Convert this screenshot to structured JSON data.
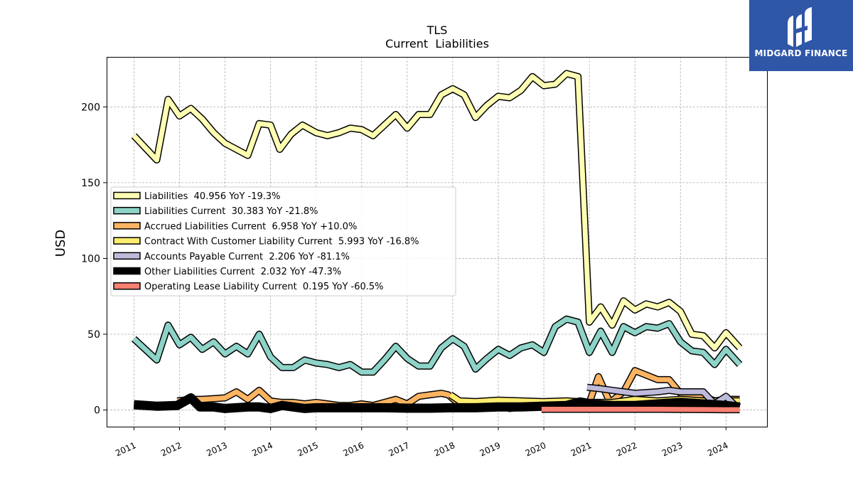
{
  "chart_data": {
    "type": "line",
    "title": "TLS",
    "subtitle": "Current  Liabilities",
    "ylabel": "USD",
    "xlabel": "",
    "xlim": [
      2010.4,
      2024.9
    ],
    "ylim": [
      -11,
      233
    ],
    "xticks": [
      2011,
      2012,
      2013,
      2014,
      2015,
      2016,
      2017,
      2018,
      2019,
      2020,
      2021,
      2022,
      2023,
      2024
    ],
    "xtick_labels": [
      "2011",
      "2012",
      "2013",
      "2014",
      "2015",
      "2016",
      "2017",
      "2018",
      "2019",
      "2020",
      "2021",
      "2022",
      "2023",
      "2024"
    ],
    "yticks": [
      0,
      50,
      100,
      150,
      200
    ],
    "ytick_labels": [
      "0",
      "50",
      "100",
      "150",
      "200"
    ],
    "grid": true,
    "legend_position": "center-left",
    "series": [
      {
        "name": "Liabilities",
        "legend_label": "Liabilities  40.956 YoY -19.3%",
        "color": "#ffffb3",
        "width": 7,
        "points": [
          [
            2011.0,
            181
          ],
          [
            2011.25,
            173
          ],
          [
            2011.5,
            165
          ],
          [
            2011.75,
            205
          ],
          [
            2012.0,
            194
          ],
          [
            2012.25,
            199
          ],
          [
            2012.5,
            192
          ],
          [
            2012.75,
            183
          ],
          [
            2013.0,
            176
          ],
          [
            2013.25,
            172
          ],
          [
            2013.5,
            168
          ],
          [
            2013.75,
            189
          ],
          [
            2014.0,
            188
          ],
          [
            2014.2,
            172
          ],
          [
            2014.45,
            182
          ],
          [
            2014.7,
            188
          ],
          [
            2015.0,
            183
          ],
          [
            2015.25,
            181
          ],
          [
            2015.5,
            183
          ],
          [
            2015.75,
            186
          ],
          [
            2016.0,
            185
          ],
          [
            2016.25,
            181
          ],
          [
            2016.5,
            188
          ],
          [
            2016.75,
            195
          ],
          [
            2017.0,
            186
          ],
          [
            2017.25,
            195
          ],
          [
            2017.5,
            195
          ],
          [
            2017.75,
            208
          ],
          [
            2018.0,
            212
          ],
          [
            2018.25,
            208
          ],
          [
            2018.5,
            193
          ],
          [
            2018.75,
            201
          ],
          [
            2019.0,
            207
          ],
          [
            2019.25,
            206
          ],
          [
            2019.5,
            211
          ],
          [
            2019.75,
            220
          ],
          [
            2020.0,
            214
          ],
          [
            2020.25,
            215
          ],
          [
            2020.5,
            222
          ],
          [
            2020.75,
            220
          ],
          [
            2021.0,
            58
          ],
          [
            2021.25,
            68
          ],
          [
            2021.5,
            56
          ],
          [
            2021.75,
            72
          ],
          [
            2022.0,
            66
          ],
          [
            2022.25,
            70
          ],
          [
            2022.5,
            68
          ],
          [
            2022.75,
            71
          ],
          [
            2023.0,
            65
          ],
          [
            2023.25,
            50
          ],
          [
            2023.5,
            49
          ],
          [
            2023.75,
            41
          ],
          [
            2024.0,
            51
          ],
          [
            2024.3,
            41
          ]
        ]
      },
      {
        "name": "Liabilities Current",
        "legend_label": "Liabilities Current  30.383 YoY -21.8%",
        "color": "#8dd3c7",
        "width": 7,
        "points": [
          [
            2011.0,
            47
          ],
          [
            2011.25,
            40
          ],
          [
            2011.5,
            33
          ],
          [
            2011.75,
            56
          ],
          [
            2012.0,
            43
          ],
          [
            2012.25,
            48
          ],
          [
            2012.5,
            40
          ],
          [
            2012.75,
            45
          ],
          [
            2013.0,
            37
          ],
          [
            2013.25,
            42
          ],
          [
            2013.5,
            37
          ],
          [
            2013.75,
            50
          ],
          [
            2014.0,
            35
          ],
          [
            2014.25,
            28
          ],
          [
            2014.5,
            28
          ],
          [
            2014.75,
            33
          ],
          [
            2015.0,
            31
          ],
          [
            2015.25,
            30
          ],
          [
            2015.5,
            28
          ],
          [
            2015.75,
            30
          ],
          [
            2016.0,
            25
          ],
          [
            2016.25,
            25
          ],
          [
            2016.5,
            33
          ],
          [
            2016.75,
            42
          ],
          [
            2017.0,
            34
          ],
          [
            2017.25,
            29
          ],
          [
            2017.5,
            29
          ],
          [
            2017.75,
            41
          ],
          [
            2018.0,
            47
          ],
          [
            2018.25,
            42
          ],
          [
            2018.5,
            27
          ],
          [
            2018.75,
            34
          ],
          [
            2019.0,
            40
          ],
          [
            2019.25,
            36
          ],
          [
            2019.5,
            41
          ],
          [
            2019.75,
            43
          ],
          [
            2020.0,
            38
          ],
          [
            2020.25,
            55
          ],
          [
            2020.5,
            60
          ],
          [
            2020.75,
            58
          ],
          [
            2021.0,
            38
          ],
          [
            2021.25,
            52
          ],
          [
            2021.5,
            38
          ],
          [
            2021.75,
            55
          ],
          [
            2022.0,
            51
          ],
          [
            2022.25,
            55
          ],
          [
            2022.5,
            54
          ],
          [
            2022.75,
            57
          ],
          [
            2023.0,
            45
          ],
          [
            2023.25,
            39
          ],
          [
            2023.5,
            38
          ],
          [
            2023.75,
            30
          ],
          [
            2024.0,
            40
          ],
          [
            2024.3,
            30
          ]
        ]
      },
      {
        "name": "Accrued Liabilities Current",
        "legend_label": "Accrued Liabilities Current  6.958 YoY +10.0%",
        "color": "#fdb462",
        "width": 7,
        "points": [
          [
            2011.95,
            6
          ],
          [
            2012.25,
            7
          ],
          [
            2012.5,
            7
          ],
          [
            2012.75,
            7.5
          ],
          [
            2013.0,
            8
          ],
          [
            2013.25,
            12
          ],
          [
            2013.5,
            7
          ],
          [
            2013.75,
            13
          ],
          [
            2014.0,
            6
          ],
          [
            2014.25,
            5
          ],
          [
            2014.5,
            5
          ],
          [
            2014.75,
            4
          ],
          [
            2015.0,
            5
          ],
          [
            2015.25,
            4
          ],
          [
            2015.5,
            3
          ],
          [
            2015.75,
            3
          ],
          [
            2016.0,
            4
          ],
          [
            2016.25,
            3
          ],
          [
            2016.5,
            5
          ],
          [
            2016.75,
            7
          ],
          [
            2017.0,
            4
          ],
          [
            2017.25,
            9
          ],
          [
            2017.5,
            10
          ],
          [
            2017.75,
            11
          ],
          [
            2017.9,
            10
          ],
          [
            2018.1,
            5
          ],
          [
            2018.5,
            5
          ],
          [
            2019.0,
            5
          ],
          [
            2019.25,
            1
          ],
          [
            2019.5,
            2
          ],
          [
            2020.0,
            3
          ],
          [
            2020.5,
            4
          ],
          [
            2020.8,
            6
          ],
          [
            2021.0,
            5
          ],
          [
            2021.2,
            22
          ],
          [
            2021.45,
            5
          ],
          [
            2021.75,
            12
          ],
          [
            2022.0,
            26
          ],
          [
            2022.25,
            23
          ],
          [
            2022.5,
            20
          ],
          [
            2022.75,
            20
          ],
          [
            2023.0,
            11
          ],
          [
            2023.25,
            9
          ],
          [
            2023.5,
            9
          ],
          [
            2023.75,
            6
          ],
          [
            2024.0,
            7
          ],
          [
            2024.3,
            7
          ]
        ]
      },
      {
        "name": "Contract With Customer Liability Current",
        "legend_label": "Contract With Customer Liability Current  5.993 YoY -16.8%",
        "color": "#ffed6f",
        "width": 7,
        "points": [
          [
            2017.95,
            10
          ],
          [
            2018.15,
            6
          ],
          [
            2018.5,
            5.5
          ],
          [
            2019.0,
            6.5
          ],
          [
            2019.5,
            6
          ],
          [
            2020.0,
            5.5
          ],
          [
            2020.5,
            6
          ],
          [
            2021.0,
            5
          ],
          [
            2021.5,
            5
          ],
          [
            2021.75,
            6
          ],
          [
            2022.0,
            7
          ],
          [
            2022.5,
            6
          ],
          [
            2023.0,
            7
          ],
          [
            2023.5,
            6
          ],
          [
            2024.0,
            6
          ],
          [
            2024.3,
            6
          ]
        ]
      },
      {
        "name": "Accounts Payable Current",
        "legend_label": "Accounts Payable Current  2.206 YoY -81.1%",
        "color": "#bebada",
        "width": 7,
        "points": [
          [
            2020.95,
            15
          ],
          [
            2021.25,
            14
          ],
          [
            2021.5,
            13
          ],
          [
            2021.75,
            12
          ],
          [
            2022.0,
            11
          ],
          [
            2022.5,
            12
          ],
          [
            2022.75,
            13
          ],
          [
            2023.0,
            12
          ],
          [
            2023.25,
            12
          ],
          [
            2023.5,
            12
          ],
          [
            2023.75,
            4
          ],
          [
            2024.0,
            9
          ],
          [
            2024.2,
            3
          ],
          [
            2024.3,
            2
          ]
        ]
      },
      {
        "name": "Other Liabilities Current",
        "legend_label": "Other Liabilities Current  2.032 YoY -47.3%",
        "color": "#000000",
        "width": 10,
        "points": [
          [
            2011.0,
            3.5
          ],
          [
            2011.5,
            2.5
          ],
          [
            2011.95,
            3
          ],
          [
            2012.25,
            8
          ],
          [
            2012.45,
            2
          ],
          [
            2012.75,
            2
          ],
          [
            2013.0,
            1
          ],
          [
            2013.5,
            2
          ],
          [
            2013.75,
            2
          ],
          [
            2014.0,
            1
          ],
          [
            2014.25,
            3
          ],
          [
            2014.5,
            2
          ],
          [
            2014.75,
            1
          ],
          [
            2015.0,
            1.5
          ],
          [
            2015.5,
            1.5
          ],
          [
            2016.0,
            1.5
          ],
          [
            2016.5,
            1.5
          ],
          [
            2017.0,
            1.2
          ],
          [
            2017.5,
            1.2
          ],
          [
            2018.0,
            1.5
          ],
          [
            2018.5,
            1.5
          ],
          [
            2019.0,
            2
          ],
          [
            2019.5,
            2
          ],
          [
            2020.0,
            2.5
          ],
          [
            2020.5,
            3
          ],
          [
            2020.75,
            5
          ],
          [
            2021.0,
            4
          ],
          [
            2021.5,
            3
          ],
          [
            2022.0,
            3
          ],
          [
            2022.5,
            4
          ],
          [
            2023.0,
            5
          ],
          [
            2023.5,
            4
          ],
          [
            2024.0,
            3
          ],
          [
            2024.3,
            2
          ]
        ]
      },
      {
        "name": "Operating Lease Liability Current",
        "legend_label": "Operating Lease Liability Current  0.195 YoY -60.5%",
        "color": "#fb8072",
        "width": 7,
        "points": [
          [
            2019.95,
            0.5
          ],
          [
            2020.5,
            0.5
          ],
          [
            2021.0,
            0.5
          ],
          [
            2021.5,
            0.5
          ],
          [
            2022.0,
            0.5
          ],
          [
            2022.5,
            0.5
          ],
          [
            2023.0,
            0.4
          ],
          [
            2023.5,
            0.3
          ],
          [
            2024.0,
            0.2
          ],
          [
            2024.3,
            0.2
          ]
        ]
      }
    ]
  },
  "logo": {
    "text": "MIDGARD FINANCE"
  }
}
